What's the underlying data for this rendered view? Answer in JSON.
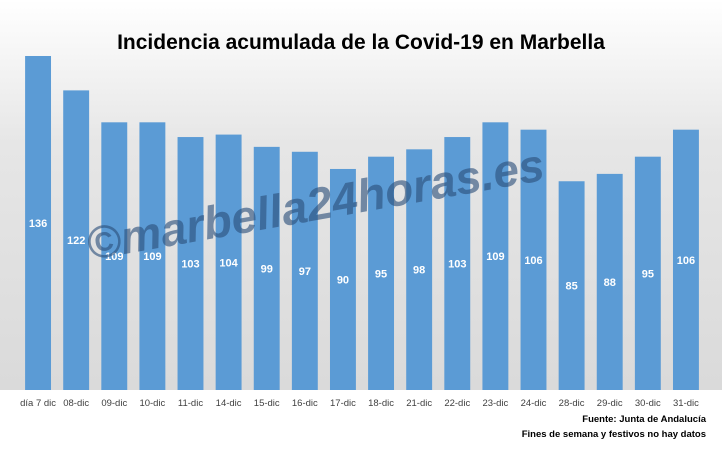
{
  "chart_data": {
    "type": "bar",
    "title": "Incidencia acumulada de la Covid-19 en Marbella",
    "categories": [
      "día 7 dic",
      "08-dic",
      "09-dic",
      "10-dic",
      "11-dic",
      "14-dic",
      "15-dic",
      "16-dic",
      "17-dic",
      "18-dic",
      "21-dic",
      "22-dic",
      "23-dic",
      "24-dic",
      "28-dic",
      "29-dic",
      "30-dic",
      "31-dic"
    ],
    "values": [
      136,
      122,
      109,
      109,
      103,
      104,
      99,
      97,
      90,
      95,
      98,
      103,
      109,
      106,
      85,
      88,
      95,
      106
    ],
    "xlabel": "",
    "ylabel": "",
    "data_labels": true,
    "grid": false,
    "bar_color": "#5b9bd5",
    "label_color": "#ffffff",
    "background": "gradient-gray"
  },
  "watermark": "©marbella24horas.es",
  "footnotes": {
    "source": "Fuente: Junta de Andalucía",
    "note": "Fines de semana y festivos no hay datos"
  }
}
